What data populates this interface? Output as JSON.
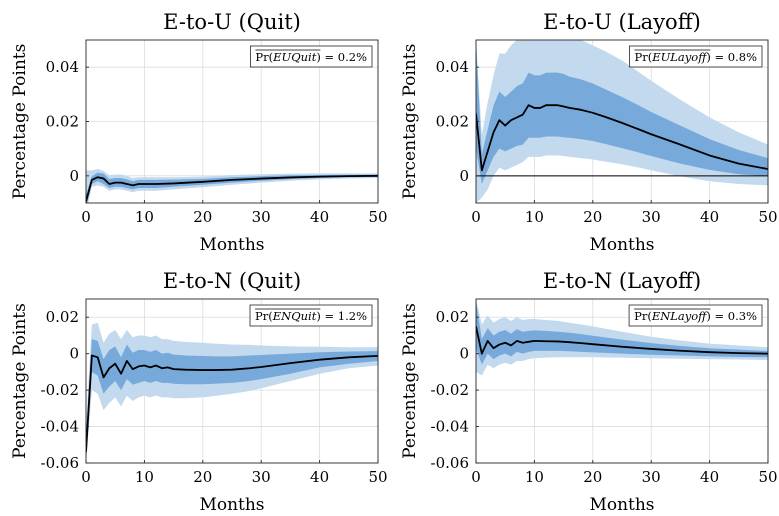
{
  "chart_data": [
    {
      "type": "line",
      "title": "E-to-U (Quit)",
      "xlabel": "Months",
      "ylabel": "Percentage Points",
      "annotation": {
        "prefix": "Pr(",
        "var": "EUQuit",
        "suffix": ") = 0.2%"
      },
      "xlim": [
        0,
        50
      ],
      "ylim": [
        -0.01,
        0.05
      ],
      "xticks": [
        0,
        10,
        20,
        30,
        40,
        50
      ],
      "yticks": [
        0,
        0.02,
        0.04
      ],
      "ytick_labels": [
        "0",
        "0.02",
        "0.04"
      ],
      "grid": true,
      "zero_line": false,
      "x": [
        0,
        1,
        2,
        3,
        4,
        5,
        6,
        7,
        8,
        9,
        10,
        12,
        15,
        20,
        25,
        30,
        35,
        40,
        45,
        50
      ],
      "median": [
        -0.0095,
        -0.0015,
        -0.0005,
        -0.001,
        -0.003,
        -0.0025,
        -0.0025,
        -0.003,
        -0.0035,
        -0.003,
        -0.003,
        -0.003,
        -0.0028,
        -0.0022,
        -0.0015,
        -0.001,
        -0.0006,
        -0.0003,
        -0.0001,
        0.0
      ],
      "inner_lower": [
        -0.012,
        -0.003,
        -0.002,
        -0.003,
        -0.0045,
        -0.004,
        -0.004,
        -0.0045,
        -0.005,
        -0.0045,
        -0.0045,
        -0.0045,
        -0.004,
        -0.0033,
        -0.0025,
        -0.0018,
        -0.0012,
        -0.0008,
        -0.0005,
        -0.0004
      ],
      "inner_upper": [
        -0.007,
        -0.0002,
        0.0012,
        0.0008,
        -0.0012,
        -0.0008,
        -0.0008,
        -0.0013,
        -0.002,
        -0.0015,
        -0.0015,
        -0.0015,
        -0.0014,
        -0.0011,
        -0.0005,
        -0.0001,
        0.0002,
        0.0003,
        0.0004,
        0.0004
      ],
      "outer_lower": [
        -0.014,
        -0.004,
        -0.0035,
        -0.004,
        -0.0055,
        -0.005,
        -0.005,
        -0.0055,
        -0.006,
        -0.0055,
        -0.0055,
        -0.0055,
        -0.005,
        -0.0042,
        -0.0033,
        -0.0025,
        -0.0018,
        -0.0013,
        -0.001,
        -0.0008
      ],
      "outer_upper": [
        0.002,
        0.002,
        0.0025,
        0.0018,
        0.0002,
        0.0005,
        0.0005,
        0.0,
        -0.0008,
        -0.0005,
        -0.0005,
        -0.0005,
        -0.0005,
        -0.0003,
        0.0003,
        0.0006,
        0.0008,
        0.0009,
        0.0009,
        0.0009
      ]
    },
    {
      "type": "line",
      "title": "E-to-U (Layoff)",
      "xlabel": "Months",
      "ylabel": "Percentage Points",
      "annotation": {
        "prefix": "Pr(",
        "var": "EULayoff",
        "suffix": ") = 0.8%"
      },
      "xlim": [
        0,
        50
      ],
      "ylim": [
        -0.01,
        0.05
      ],
      "xticks": [
        0,
        10,
        20,
        30,
        40,
        50
      ],
      "yticks": [
        0,
        0.02,
        0.04
      ],
      "ytick_labels": [
        "0",
        "0.02",
        "0.04"
      ],
      "grid": true,
      "zero_line": true,
      "x": [
        0,
        1,
        2,
        3,
        4,
        5,
        6,
        7,
        8,
        9,
        10,
        11,
        12,
        13,
        14,
        15,
        16,
        18,
        20,
        22,
        25,
        28,
        30,
        35,
        40,
        45,
        50
      ],
      "median": [
        0.023,
        0.002,
        0.009,
        0.016,
        0.0205,
        0.0185,
        0.0205,
        0.0215,
        0.0225,
        0.026,
        0.025,
        0.025,
        0.026,
        0.026,
        0.026,
        0.0255,
        0.025,
        0.0243,
        0.0232,
        0.0218,
        0.0195,
        0.017,
        0.0153,
        0.0115,
        0.0075,
        0.0045,
        0.0025
      ],
      "inner_lower": [
        0.01,
        -0.003,
        0.002,
        0.007,
        0.01,
        0.009,
        0.01,
        0.011,
        0.0115,
        0.014,
        0.014,
        0.014,
        0.0145,
        0.0145,
        0.0145,
        0.0142,
        0.014,
        0.0135,
        0.0128,
        0.0118,
        0.0102,
        0.0085,
        0.0073,
        0.0045,
        0.0022,
        0.0006,
        -0.0002
      ],
      "inner_upper": [
        0.05,
        0.008,
        0.017,
        0.026,
        0.031,
        0.029,
        0.031,
        0.033,
        0.034,
        0.038,
        0.037,
        0.037,
        0.038,
        0.038,
        0.038,
        0.0375,
        0.0365,
        0.0355,
        0.034,
        0.032,
        0.029,
        0.0258,
        0.0235,
        0.0185,
        0.0135,
        0.0095,
        0.0065
      ],
      "outer_lower": [
        -0.01,
        -0.008,
        -0.005,
        0.0,
        0.003,
        0.002,
        0.003,
        0.004,
        0.005,
        0.007,
        0.007,
        0.007,
        0.0075,
        0.0075,
        0.0075,
        0.0073,
        0.007,
        0.0065,
        0.006,
        0.0053,
        0.0042,
        0.003,
        0.002,
        -0.0002,
        -0.002,
        -0.003,
        -0.0035
      ],
      "outer_upper": [
        0.05,
        0.015,
        0.027,
        0.037,
        0.045,
        0.045,
        0.048,
        0.05,
        0.05,
        0.05,
        0.05,
        0.05,
        0.05,
        0.05,
        0.05,
        0.05,
        0.05,
        0.05,
        0.048,
        0.046,
        0.0425,
        0.038,
        0.035,
        0.028,
        0.0215,
        0.016,
        0.0115
      ]
    },
    {
      "type": "line",
      "title": "E-to-N (Quit)",
      "xlabel": "Months",
      "ylabel": "Percentage Points",
      "annotation": {
        "prefix": "Pr(",
        "var": "ENQuit",
        "suffix": ") = 1.2%"
      },
      "xlim": [
        0,
        50
      ],
      "ylim": [
        -0.06,
        0.03
      ],
      "xticks": [
        0,
        10,
        20,
        30,
        40,
        50
      ],
      "yticks": [
        -0.06,
        -0.04,
        -0.02,
        0,
        0.02
      ],
      "ytick_labels": [
        "-0.06",
        "-0.04",
        "-0.02",
        "0",
        "0.02"
      ],
      "grid": true,
      "zero_line": false,
      "x": [
        0,
        1,
        2,
        3,
        4,
        5,
        6,
        7,
        8,
        9,
        10,
        11,
        12,
        13,
        14,
        15,
        17,
        20,
        22,
        25,
        28,
        30,
        35,
        40,
        45,
        50
      ],
      "median": [
        -0.054,
        -0.001,
        -0.002,
        -0.013,
        -0.008,
        -0.0055,
        -0.011,
        -0.004,
        -0.0085,
        -0.007,
        -0.0065,
        -0.0075,
        -0.0065,
        -0.008,
        -0.0075,
        -0.0085,
        -0.0088,
        -0.009,
        -0.009,
        -0.0088,
        -0.008,
        -0.0073,
        -0.0052,
        -0.0033,
        -0.002,
        -0.0012
      ],
      "inner_lower": [
        -0.06,
        -0.01,
        -0.012,
        -0.022,
        -0.018,
        -0.015,
        -0.02,
        -0.014,
        -0.017,
        -0.016,
        -0.015,
        -0.016,
        -0.015,
        -0.016,
        -0.016,
        -0.0165,
        -0.0168,
        -0.0168,
        -0.0165,
        -0.016,
        -0.015,
        -0.014,
        -0.011,
        -0.0075,
        -0.0055,
        -0.004
      ],
      "inner_upper": [
        -0.045,
        0.008,
        0.007,
        -0.003,
        0.002,
        0.004,
        -0.002,
        0.005,
        0.0005,
        0.002,
        0.002,
        0.001,
        0.002,
        0.0,
        0.0005,
        -0.0005,
        -0.001,
        -0.0013,
        -0.0015,
        -0.0015,
        -0.001,
        -0.0007,
        0.0,
        0.0008,
        0.0012,
        0.0014
      ],
      "outer_lower": [
        -0.06,
        -0.02,
        -0.022,
        -0.031,
        -0.027,
        -0.024,
        -0.029,
        -0.023,
        -0.026,
        -0.024,
        -0.023,
        -0.024,
        -0.023,
        -0.024,
        -0.024,
        -0.0245,
        -0.0245,
        -0.024,
        -0.0232,
        -0.022,
        -0.0205,
        -0.019,
        -0.015,
        -0.011,
        -0.008,
        -0.0065
      ],
      "outer_upper": [
        -0.04,
        0.016,
        0.017,
        0.006,
        0.011,
        0.013,
        0.008,
        0.013,
        0.009,
        0.01,
        0.01,
        0.009,
        0.01,
        0.008,
        0.008,
        0.007,
        0.0065,
        0.006,
        0.0055,
        0.005,
        0.0048,
        0.0045,
        0.004,
        0.0038,
        0.0035,
        0.0035
      ]
    },
    {
      "type": "line",
      "title": "E-to-N (Layoff)",
      "xlabel": "Months",
      "ylabel": "Percentage Points",
      "annotation": {
        "prefix": "Pr(",
        "var": "ENLayoff",
        "suffix": ") = 0.3%"
      },
      "xlim": [
        0,
        50
      ],
      "ylim": [
        -0.06,
        0.03
      ],
      "xticks": [
        0,
        10,
        20,
        30,
        40,
        50
      ],
      "yticks": [
        -0.06,
        -0.04,
        -0.02,
        0,
        0.02
      ],
      "ytick_labels": [
        "-0.06",
        "-0.04",
        "-0.02",
        "0",
        "0.02"
      ],
      "grid": true,
      "zero_line": false,
      "x": [
        0,
        1,
        2,
        3,
        4,
        5,
        6,
        7,
        8,
        9,
        10,
        12,
        14,
        16,
        18,
        20,
        25,
        30,
        35,
        40,
        45,
        50
      ],
      "median": [
        0.015,
        0.0,
        0.007,
        0.003,
        0.005,
        0.006,
        0.0045,
        0.007,
        0.006,
        0.0065,
        0.007,
        0.0068,
        0.0067,
        0.0063,
        0.0058,
        0.0052,
        0.0038,
        0.0026,
        0.0016,
        0.0008,
        0.0003,
        0.0
      ],
      "inner_lower": [
        0.003,
        -0.006,
        0.0,
        -0.003,
        -0.001,
        0.0,
        -0.0015,
        0.001,
        0.0,
        0.001,
        0.0015,
        0.0015,
        0.0015,
        0.0013,
        0.001,
        0.0007,
        0.0,
        -0.0006,
        -0.001,
        -0.0015,
        -0.0018,
        -0.002
      ],
      "inner_upper": [
        0.029,
        0.008,
        0.014,
        0.01,
        0.012,
        0.013,
        0.011,
        0.0135,
        0.012,
        0.0125,
        0.0128,
        0.0125,
        0.012,
        0.0115,
        0.0107,
        0.0098,
        0.0077,
        0.0058,
        0.0042,
        0.003,
        0.0022,
        0.0015
      ],
      "outer_lower": [
        -0.01,
        -0.012,
        -0.006,
        -0.008,
        -0.006,
        -0.005,
        -0.006,
        -0.004,
        -0.004,
        -0.003,
        -0.0025,
        -0.0022,
        -0.002,
        -0.002,
        -0.002,
        -0.002,
        -0.0022,
        -0.0025,
        -0.0028,
        -0.003,
        -0.0032,
        -0.0035
      ],
      "outer_upper": [
        0.03,
        0.016,
        0.021,
        0.017,
        0.019,
        0.02,
        0.018,
        0.02,
        0.0185,
        0.019,
        0.019,
        0.0185,
        0.018,
        0.017,
        0.016,
        0.015,
        0.012,
        0.0093,
        0.0072,
        0.0055,
        0.0045,
        0.0035
      ]
    }
  ]
}
